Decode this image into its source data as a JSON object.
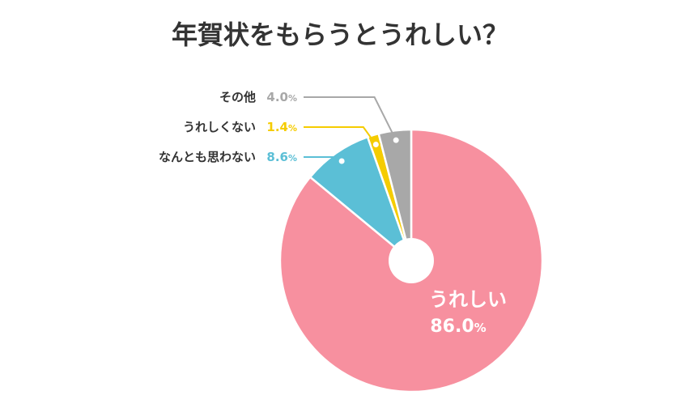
{
  "chart_data": {
    "type": "pie",
    "title": "年賀状をもらうとうれしい？",
    "categories": [
      "うれしい",
      "なんとも思わない",
      "うれしくない",
      "その他"
    ],
    "values": [
      86.0,
      8.6,
      1.4,
      4.0
    ],
    "unit": "%",
    "colors": [
      "#f7909f",
      "#5bbfd6",
      "#f5cc00",
      "#a8a8a8"
    ],
    "value_labels": [
      "86.0",
      "8.6",
      "1.4",
      "4.0"
    ],
    "donut": true
  }
}
